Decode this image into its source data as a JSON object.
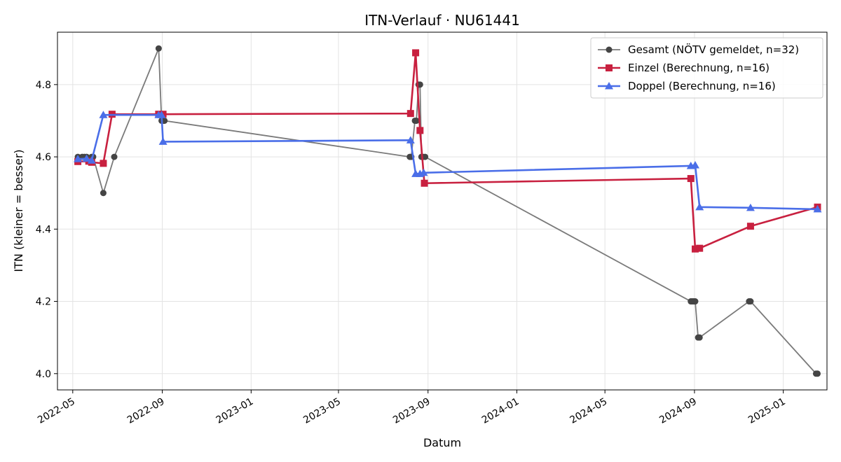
{
  "chart_data": {
    "type": "line",
    "title": "ITN-Verlauf · NU61441",
    "xlabel": "Datum",
    "ylabel": "ITN  (kleiner = besser)",
    "x_axis": "date",
    "xlim": [
      "2022-04-10",
      "2025-03-02"
    ],
    "ylim": [
      3.955,
      4.945
    ],
    "x_ticks": [
      "2022-05-01",
      "2022-09-01",
      "2023-01-01",
      "2023-05-01",
      "2023-09-01",
      "2024-01-01",
      "2024-05-01",
      "2024-09-01",
      "2025-01-01"
    ],
    "x_tick_labels": [
      "2022-05",
      "2022-09",
      "2023-01",
      "2023-05",
      "2023-09",
      "2024-01",
      "2024-05",
      "2024-09",
      "2025-01"
    ],
    "y_ticks": [
      4.0,
      4.2,
      4.4,
      4.6,
      4.8
    ],
    "y_tick_labels": [
      "4.0",
      "4.2",
      "4.4",
      "4.6",
      "4.8"
    ],
    "grid": true,
    "legend_position": "top-right",
    "series": [
      {
        "name": "Gesamt (NÖTV gemeldet, n=32)",
        "color": "#7a7a7a",
        "marker_color": "#444444",
        "marker": "circle",
        "points": [
          {
            "x": "2022-05-08",
            "y": 4.6
          },
          {
            "x": "2022-05-14",
            "y": 4.6
          },
          {
            "x": "2022-05-17",
            "y": 4.6
          },
          {
            "x": "2022-05-20",
            "y": 4.6
          },
          {
            "x": "2022-05-27",
            "y": 4.6
          },
          {
            "x": "2022-05-29",
            "y": 4.6
          },
          {
            "x": "2022-06-12",
            "y": 4.5
          },
          {
            "x": "2022-06-27",
            "y": 4.6
          },
          {
            "x": "2022-08-27",
            "y": 4.9
          },
          {
            "x": "2022-08-31",
            "y": 4.7
          },
          {
            "x": "2022-09-01",
            "y": 4.7
          },
          {
            "x": "2022-09-03",
            "y": 4.7
          },
          {
            "x": "2022-09-04",
            "y": 4.7
          },
          {
            "x": "2023-08-07",
            "y": 4.6
          },
          {
            "x": "2023-08-09",
            "y": 4.6
          },
          {
            "x": "2023-08-14",
            "y": 4.7
          },
          {
            "x": "2023-08-16",
            "y": 4.7
          },
          {
            "x": "2023-08-19",
            "y": 4.8
          },
          {
            "x": "2023-08-21",
            "y": 4.8
          },
          {
            "x": "2023-08-23",
            "y": 4.6
          },
          {
            "x": "2023-08-25",
            "y": 4.6
          },
          {
            "x": "2023-08-28",
            "y": 4.6
          },
          {
            "x": "2024-08-27",
            "y": 4.2
          },
          {
            "x": "2024-08-29",
            "y": 4.2
          },
          {
            "x": "2024-08-31",
            "y": 4.2
          },
          {
            "x": "2024-09-02",
            "y": 4.2
          },
          {
            "x": "2024-09-06",
            "y": 4.1
          },
          {
            "x": "2024-09-08",
            "y": 4.1
          },
          {
            "x": "2024-11-15",
            "y": 4.2
          },
          {
            "x": "2024-11-17",
            "y": 4.2
          },
          {
            "x": "2025-02-15",
            "y": 4.0
          },
          {
            "x": "2025-02-17",
            "y": 4.0
          }
        ]
      },
      {
        "name": "Einzel (Berechnung, n=16)",
        "color": "#c8203f",
        "marker_color": "#c8203f",
        "marker": "square",
        "points": [
          {
            "x": "2022-05-08",
            "y": 4.587
          },
          {
            "x": "2022-05-23",
            "y": 4.588
          },
          {
            "x": "2022-05-27",
            "y": 4.585
          },
          {
            "x": "2022-06-12",
            "y": 4.582
          },
          {
            "x": "2022-06-24",
            "y": 4.718
          },
          {
            "x": "2022-08-27",
            "y": 4.718
          },
          {
            "x": "2022-09-02",
            "y": 4.718
          },
          {
            "x": "2023-08-08",
            "y": 4.72
          },
          {
            "x": "2023-08-15",
            "y": 4.888
          },
          {
            "x": "2023-08-21",
            "y": 4.673
          },
          {
            "x": "2023-08-27",
            "y": 4.527
          },
          {
            "x": "2024-08-27",
            "y": 4.54
          },
          {
            "x": "2024-09-02",
            "y": 4.345
          },
          {
            "x": "2024-09-08",
            "y": 4.347
          },
          {
            "x": "2024-11-17",
            "y": 4.408
          },
          {
            "x": "2025-02-17",
            "y": 4.461
          }
        ]
      },
      {
        "name": "Doppel (Berechnung, n=16)",
        "color": "#4a6ee8",
        "marker_color": "#4a6ee8",
        "marker": "triangle",
        "points": [
          {
            "x": "2022-05-08",
            "y": 4.594
          },
          {
            "x": "2022-05-20",
            "y": 4.595
          },
          {
            "x": "2022-05-27",
            "y": 4.59
          },
          {
            "x": "2022-06-12",
            "y": 4.716
          },
          {
            "x": "2022-08-27",
            "y": 4.716
          },
          {
            "x": "2022-08-31",
            "y": 4.716
          },
          {
            "x": "2022-09-02",
            "y": 4.642
          },
          {
            "x": "2023-08-08",
            "y": 4.646
          },
          {
            "x": "2023-08-15",
            "y": 4.553
          },
          {
            "x": "2023-08-21",
            "y": 4.553
          },
          {
            "x": "2023-08-26",
            "y": 4.556
          },
          {
            "x": "2024-08-27",
            "y": 4.575
          },
          {
            "x": "2024-09-02",
            "y": 4.577
          },
          {
            "x": "2024-09-08",
            "y": 4.461
          },
          {
            "x": "2024-11-17",
            "y": 4.459
          },
          {
            "x": "2025-02-17",
            "y": 4.455
          }
        ]
      }
    ]
  }
}
